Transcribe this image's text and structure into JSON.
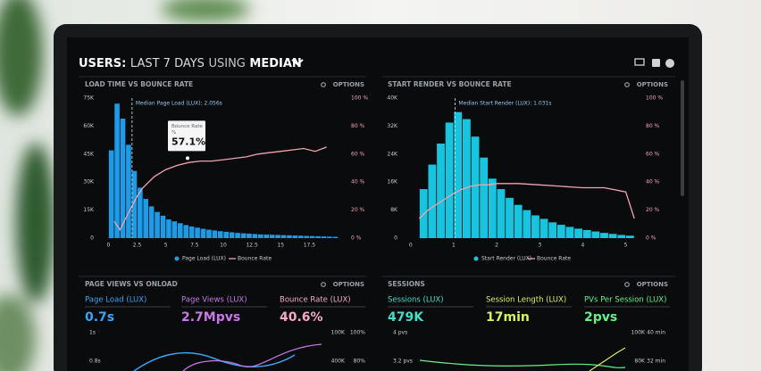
{
  "header": {
    "title_parts": [
      "USERS:",
      "LAST 7 DAYS",
      "USING",
      "MEDIAN"
    ]
  },
  "panels": [
    {
      "title": "LOAD TIME VS BOUNCE RATE",
      "options": "OPTIONS",
      "chart": {
        "type": "histogram+line",
        "bins": [
          0,
          0.5,
          1,
          1.5,
          2,
          2.5,
          3,
          3.5,
          4,
          4.5,
          5,
          5.5,
          6,
          6.5,
          7,
          7.5,
          8,
          8.5,
          9,
          9.5,
          10,
          10.5,
          11,
          11.5,
          12,
          12.5,
          13,
          13.5,
          14,
          14.5,
          15,
          15.5,
          16,
          16.5,
          17,
          17.5,
          18,
          18.5,
          19,
          19.5,
          20
        ],
        "series": [
          {
            "name": "Page Load (LUX)",
            "color": "#1d9be6",
            "values": [
              47000,
              72000,
              64000,
              50000,
              36000,
              27000,
              21000,
              17000,
              14000,
              12000,
              10000,
              9000,
              8000,
              7000,
              6200,
              5600,
              5000,
              4500,
              4100,
              3700,
              3400,
              3100,
              2800,
              2600,
              2400,
              2200,
              2000,
              1900,
              1800,
              1700,
              1600,
              1500,
              1400,
              1300,
              1200,
              1100,
              1000,
              900,
              800,
              700
            ]
          },
          {
            "name": "Bounce Rate",
            "color": "#f2a3b3",
            "axis": "y2",
            "x": [
              0.5,
              1,
              1.5,
              2,
              2.5,
              3,
              4,
              5,
              6,
              7,
              8,
              9,
              10,
              11,
              12,
              13,
              14,
              15,
              16,
              17,
              18,
              19
            ],
            "values": [
              12,
              6,
              14,
              22,
              30,
              36,
              44,
              49,
              52,
              54,
              55,
              55,
              56,
              57,
              58,
              60,
              61,
              62,
              63,
              64,
              62,
              65
            ]
          }
        ],
        "xlim": [
          -0.5,
          20.5
        ],
        "xticks": [
          0,
          2.5,
          5,
          7.5,
          10,
          12.5,
          15,
          17.5
        ],
        "ylim": [
          0,
          75000
        ],
        "yticks": [
          {
            "value": 0,
            "label": "0"
          },
          {
            "value": 15000,
            "label": "15K"
          },
          {
            "value": 30000,
            "label": "30K"
          },
          {
            "value": 45000,
            "label": "45K"
          },
          {
            "value": 60000,
            "label": "60K"
          },
          {
            "value": 75000,
            "label": "75K"
          }
        ],
        "y2lim": [
          0,
          100
        ],
        "y2ticks": [
          {
            "value": 0,
            "label": "0 %"
          },
          {
            "value": 20,
            "label": "20 %"
          },
          {
            "value": 40,
            "label": "40 %"
          },
          {
            "value": 60,
            "label": "60 %"
          },
          {
            "value": 80,
            "label": "80 %"
          },
          {
            "value": 100,
            "label": "100 %"
          }
        ],
        "median": {
          "label": "Median Page Load (LUX): 2.056s",
          "value": 2.056
        },
        "tooltip": {
          "title": "Bounce Rate",
          "unit": "%",
          "value": 57.1,
          "label": "57.1%"
        }
      }
    },
    {
      "title": "START RENDER VS BOUNCE RATE",
      "options": "OPTIONS",
      "chart": {
        "type": "histogram+line",
        "bins": [
          0.2,
          0.4,
          0.6,
          0.8,
          1,
          1.2,
          1.4,
          1.6,
          1.8,
          2,
          2.2,
          2.4,
          2.6,
          2.8,
          3,
          3.2,
          3.4,
          3.6,
          3.8,
          4,
          4.2,
          4.4,
          4.6,
          4.8,
          5,
          5.2
        ],
        "series": [
          {
            "name": "Start Render (LUX)",
            "color": "#19c4de",
            "values": [
              14000,
              21000,
              27000,
              33000,
              36000,
              34000,
              29000,
              23000,
              17000,
              14000,
              11500,
              9500,
              8000,
              6500,
              5500,
              4500,
              3800,
              3200,
              2700,
              2300,
              1900,
              1500,
              1200,
              900,
              700
            ]
          },
          {
            "name": "Bounce Rate",
            "color": "#f2a3b3",
            "axis": "y2",
            "x": [
              0.2,
              0.4,
              0.6,
              0.8,
              1,
              1.2,
              1.4,
              1.6,
              1.8,
              2,
              2.5,
              3,
              3.5,
              4,
              4.5,
              5,
              5.2
            ],
            "values": [
              14,
              20,
              24,
              28,
              32,
              35,
              37,
              38,
              38,
              39,
              39,
              38,
              37,
              36,
              36,
              33,
              14
            ]
          }
        ],
        "xlim": [
          -0.1,
          5.3
        ],
        "xticks": [
          0,
          1,
          2,
          3,
          4,
          5
        ],
        "ylim": [
          0,
          40000
        ],
        "yticks": [
          {
            "value": 0,
            "label": "0"
          },
          {
            "value": 8000,
            "label": "8K"
          },
          {
            "value": 16000,
            "label": "16K"
          },
          {
            "value": 24000,
            "label": "24K"
          },
          {
            "value": 32000,
            "label": "32K"
          },
          {
            "value": 40000,
            "label": "40K"
          }
        ],
        "y2lim": [
          0,
          100
        ],
        "y2ticks": [
          {
            "value": 0,
            "label": "0 %"
          },
          {
            "value": 20,
            "label": "20 %"
          },
          {
            "value": 40,
            "label": "40 %"
          },
          {
            "value": 60,
            "label": "60 %"
          },
          {
            "value": 80,
            "label": "80 %"
          },
          {
            "value": 100,
            "label": "100 %"
          }
        ],
        "median": {
          "label": "Median Start Render (LUX): 1.031s",
          "value": 1.031
        }
      }
    },
    {
      "title": "PAGE VIEWS VS ONLOAD",
      "options": "OPTIONS",
      "metrics": [
        {
          "label": "Page Load (LUX)",
          "value": "0.7s",
          "color": "#3ea2f2"
        },
        {
          "label": "Page Views (LUX)",
          "value": "2.7Mpvs",
          "color": "#c77ae6"
        },
        {
          "label": "Bounce Rate (LUX)",
          "value": "40.6%",
          "color": "#f5a9c6"
        }
      ],
      "left_ticks": [
        "1s",
        "0.8s"
      ],
      "right_ticks": [
        [
          "100K",
          "100%"
        ],
        [
          "400K",
          "80%"
        ]
      ]
    },
    {
      "title": "SESSIONS",
      "options": "OPTIONS",
      "metrics": [
        {
          "label": "Sessions (LUX)",
          "value": "479K",
          "color": "#45dcc8"
        },
        {
          "label": "Session Length (LUX)",
          "value": "17min",
          "color": "#d4f266"
        },
        {
          "label": "PVs Per Session (LUX)",
          "value": "2pvs",
          "color": "#66f08c"
        }
      ],
      "left_ticks": [
        "4 pvs",
        "3.2 pvs"
      ],
      "right_ticks": [
        [
          "100K",
          "40 min"
        ],
        [
          "80K",
          "32 min"
        ]
      ]
    }
  ]
}
